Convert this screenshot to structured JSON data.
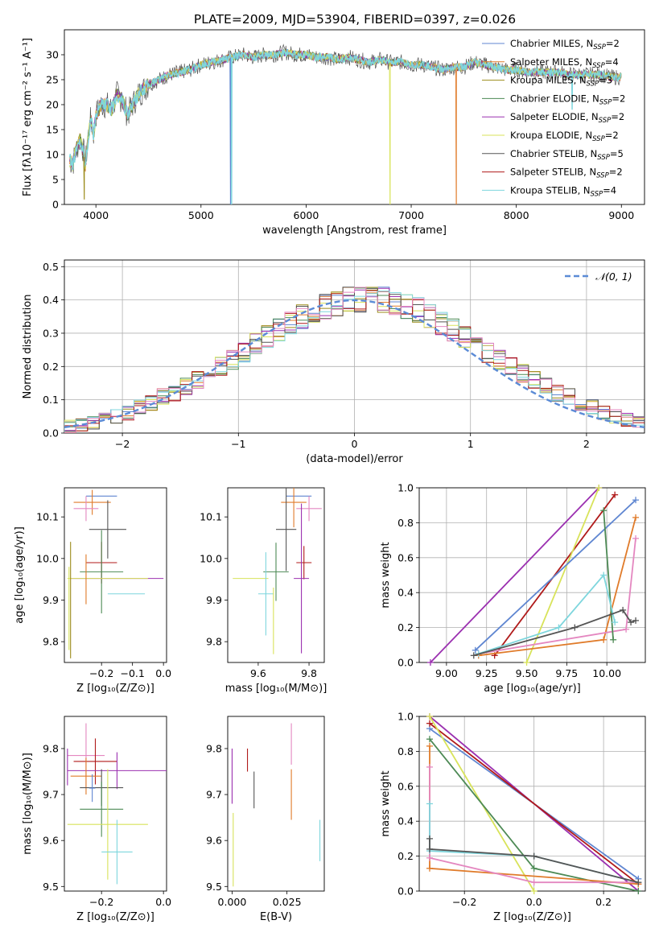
{
  "figure": {
    "title": "PLATE=2009, MJD=53904, FIBERID=0397, z=0.026"
  },
  "colors": {
    "Chabrier MILES": "#5f86d1",
    "Salpeter MILES": "#e07b2a",
    "Kroupa MILES": "#9b8b1a",
    "Chabrier ELODIE": "#4d8a55",
    "Salpeter ELODIE": "#9b30b0",
    "Kroupa ELODIE": "#d8e35a",
    "Chabrier STELIB": "#555555",
    "Salpeter STELIB": "#b01a1a",
    "Kroupa STELIB": "#7ed6dd",
    "Pink": "#e487c0",
    "Grid": "#b0b0b0",
    "Normal": "#5b8bd6"
  },
  "chart_data": [
    {
      "id": "spectrum",
      "type": "line",
      "xlabel": "wavelength [Angstrom, rest frame]",
      "ylabel": "Flux [fλ10⁻¹⁷ erg cm⁻² s⁻¹ A⁻¹]",
      "xlim": [
        3700,
        9220
      ],
      "ylim": [
        0,
        35
      ],
      "xticks": [
        4000,
        5000,
        6000,
        7000,
        8000,
        9000
      ],
      "yticks": [
        0,
        5,
        10,
        15,
        20,
        25,
        30
      ],
      "legend_position": "upper right",
      "continuum": {
        "x": [
          3750,
          3780,
          3800,
          3830,
          3850,
          3880,
          3900,
          3930,
          3950,
          3980,
          4000,
          4050,
          4100,
          4150,
          4200,
          4250,
          4300,
          4350,
          4400,
          4500,
          4600,
          4700,
          4800,
          4900,
          5000,
          5100,
          5200,
          5300,
          5400,
          5500,
          5600,
          5700,
          5800,
          5900,
          6000,
          6100,
          6200,
          6300,
          6400,
          6500,
          6600,
          6700,
          6800,
          6900,
          7000,
          7100,
          7200,
          7300,
          7400,
          7500,
          7600,
          7700,
          7800,
          7900,
          8000,
          8100,
          8200,
          8300,
          8400,
          8500,
          8600,
          8700,
          8800,
          8900,
          9000
        ],
        "y": [
          9,
          8,
          10,
          12,
          13,
          11,
          8,
          14,
          17,
          14,
          18,
          20,
          20,
          19,
          22,
          21,
          18,
          20,
          22,
          24,
          25,
          26,
          26.5,
          27,
          28,
          28.5,
          29,
          29.5,
          30,
          29.5,
          30,
          30,
          30.5,
          30,
          30,
          29.5,
          29.5,
          29,
          29.5,
          29,
          28.5,
          29,
          28.5,
          28.5,
          28,
          28,
          27.5,
          27,
          27.5,
          27.5,
          28.5,
          28,
          27.5,
          27,
          27,
          26.5,
          26.5,
          26.5,
          26.5,
          26,
          26,
          26,
          26,
          25.5,
          25.5
        ]
      },
      "series_dips": [
        {
          "name": "Kroupa MILES",
          "x": 3890,
          "y": 1
        },
        {
          "name": "Chabrier MILES",
          "x": 5280,
          "y": 0
        },
        {
          "name": "Kroupa STELIB",
          "x": 5290,
          "y": 0
        },
        {
          "name": "Kroupa ELODIE",
          "x": 6800,
          "y": 0
        },
        {
          "name": "Salpeter MILES",
          "x": 7430,
          "y": 0
        },
        {
          "name": "Kroupa STELIB",
          "x": 8530,
          "y": 19
        }
      ],
      "series": [
        {
          "key": "Chabrier MILES",
          "label": "Chabrier MILES, N",
          "sub": "SSP",
          "suffix": "=2"
        },
        {
          "key": "Salpeter MILES",
          "label": "Salpeter MILES, N",
          "sub": "SSP",
          "suffix": "=4"
        },
        {
          "key": "Kroupa MILES",
          "label": "Kroupa MILES, N",
          "sub": "SSP",
          "suffix": "=3"
        },
        {
          "key": "Chabrier ELODIE",
          "label": "Chabrier ELODIE, N",
          "sub": "SSP",
          "suffix": "=2"
        },
        {
          "key": "Salpeter ELODIE",
          "label": "Salpeter ELODIE, N",
          "sub": "SSP",
          "suffix": "=2"
        },
        {
          "key": "Kroupa ELODIE",
          "label": "Kroupa ELODIE, N",
          "sub": "SSP",
          "suffix": "=2"
        },
        {
          "key": "Chabrier STELIB",
          "label": "Chabrier STELIB, N",
          "sub": "SSP",
          "suffix": "=5"
        },
        {
          "key": "Salpeter STELIB",
          "label": "Salpeter STELIB, N",
          "sub": "SSP",
          "suffix": "=2"
        },
        {
          "key": "Kroupa STELIB",
          "label": "Kroupa STELIB, N",
          "sub": "SSP",
          "suffix": "=4"
        }
      ]
    },
    {
      "id": "residuals",
      "type": "histogram",
      "xlabel": "(data-model)/error",
      "ylabel": "Normed distribution",
      "xlim": [
        -2.5,
        2.5
      ],
      "ylim": [
        0,
        0.52
      ],
      "xticks": [
        -2,
        -1,
        0,
        1,
        2
      ],
      "yticks": [
        0.0,
        0.1,
        0.2,
        0.3,
        0.4,
        0.5
      ],
      "grid": true,
      "legend_position": "upper right",
      "legend_label": "𝒩(0, 1)",
      "bin_width": 0.1,
      "bin_start": -2.5,
      "reference": [
        0.02,
        0.025,
        0.03,
        0.04,
        0.05,
        0.06,
        0.08,
        0.09,
        0.11,
        0.12,
        0.14,
        0.16,
        0.18,
        0.2,
        0.22,
        0.24,
        0.27,
        0.29,
        0.31,
        0.33,
        0.35,
        0.37,
        0.38,
        0.39,
        0.4,
        0.4,
        0.4,
        0.4,
        0.39,
        0.38,
        0.37,
        0.35,
        0.33,
        0.31,
        0.29,
        0.27,
        0.24,
        0.22,
        0.2,
        0.18,
        0.16,
        0.14,
        0.12,
        0.11,
        0.09,
        0.08,
        0.06,
        0.05,
        0.04,
        0.03
      ],
      "series": [
        {
          "key": "Chabrier MILES",
          "offset": 1
        },
        {
          "key": "Salpeter MILES",
          "offset": 2
        },
        {
          "key": "Kroupa MILES",
          "offset": 3
        },
        {
          "key": "Chabrier ELODIE",
          "offset": 4
        },
        {
          "key": "Salpeter ELODIE",
          "offset": 5
        },
        {
          "key": "Kroupa ELODIE",
          "offset": 6
        },
        {
          "key": "Chabrier STELIB",
          "offset": 7
        },
        {
          "key": "Salpeter STELIB",
          "offset": 8
        },
        {
          "key": "Kroupa STELIB",
          "offset": 9
        },
        {
          "key": "Pink",
          "offset": 10
        }
      ],
      "normal_curve": {
        "mean": 0,
        "sigma": 1
      }
    },
    {
      "id": "age_vs_z",
      "type": "errorbar",
      "xlabel": "Z [log₁₀(Z/Z⊙)]",
      "ylabel": "age  [log₁₀(age/yr)]",
      "xlim": [
        -0.32,
        0.01
      ],
      "ylim": [
        9.75,
        10.17
      ],
      "xticks": [
        -0.2,
        -0.1,
        0.0
      ],
      "xticklabels": [
        "−0.2",
        "−0.1",
        "0.0"
      ],
      "yticks": [
        9.8,
        9.9,
        10.0,
        10.1
      ],
      "points": [
        {
          "key": "Chabrier MILES",
          "x": -0.2,
          "y": 10.15,
          "xerr": 0.05,
          "yerr": 0.0
        },
        {
          "key": "Salpeter MILES",
          "x": -0.23,
          "y": 10.135,
          "xerr": 0.06,
          "yerr": 0.03
        },
        {
          "key": "Pink",
          "x": -0.25,
          "y": 10.12,
          "xerr": 0.04,
          "yerr": 0.03
        },
        {
          "key": "Chabrier STELIB",
          "x": -0.18,
          "y": 10.07,
          "xerr": 0.06,
          "yerr": 0.07
        },
        {
          "key": "Salpeter STELIB",
          "x": -0.2,
          "y": 9.99,
          "xerr": 0.05,
          "yerr": 0.05
        },
        {
          "key": "Chabrier ELODIE",
          "x": -0.2,
          "y": 9.968,
          "xerr": 0.07,
          "yerr": 0.1
        },
        {
          "key": "Salpeter ELODIE",
          "x": -0.15,
          "y": 9.952,
          "xerr": 0.15,
          "yerr": 0.0
        },
        {
          "key": "Kroupa ELODIE",
          "x": -0.18,
          "y": 9.952,
          "xerr": 0.13,
          "yerr": 0.0
        },
        {
          "key": "Kroupa STELIB",
          "x": -0.12,
          "y": 9.915,
          "xerr": 0.06,
          "yerr": 0.0
        },
        {
          "key": "Salpeter MILES",
          "x": -0.25,
          "y": 9.95,
          "xerr": 0.0,
          "yerr": 0.06
        },
        {
          "key": "Kroupa MILES",
          "x": -0.3,
          "y": 9.9,
          "xerr": 0.0,
          "yerr": 0.14
        },
        {
          "key": "Kroupa ELODIE",
          "x": -0.305,
          "y": 9.88,
          "xerr": 0.0,
          "yerr": 0.1
        }
      ]
    },
    {
      "id": "age_vs_mass",
      "type": "errorbar",
      "xlabel": "mass [log₁₀(M/M⊙)]",
      "ylabel": "",
      "xlim": [
        9.48,
        9.86
      ],
      "ylim": [
        9.75,
        10.17
      ],
      "xticks": [
        9.6,
        9.8
      ],
      "yticks": [
        9.8,
        9.9,
        10.0,
        10.1
      ],
      "points": [
        {
          "key": "Chabrier MILES",
          "x": 9.76,
          "y": 10.15,
          "xerr": 0.05,
          "yerr": 0.0
        },
        {
          "key": "Salpeter MILES",
          "x": 9.74,
          "y": 10.135,
          "xerr": 0.05,
          "yerr": 0.06
        },
        {
          "key": "Pink",
          "x": 9.8,
          "y": 10.12,
          "xerr": 0.05,
          "yerr": 0.03
        },
        {
          "key": "Chabrier STELIB",
          "x": 9.71,
          "y": 10.07,
          "xerr": 0.04,
          "yerr": 0.1
        },
        {
          "key": "Salpeter STELIB",
          "x": 9.78,
          "y": 9.99,
          "xerr": 0.03,
          "yerr": 0.04
        },
        {
          "key": "Chabrier ELODIE",
          "x": 9.67,
          "y": 9.968,
          "xerr": 0.05,
          "yerr": 0.07
        },
        {
          "key": "Salpeter ELODIE",
          "x": 9.77,
          "y": 9.952,
          "xerr": 0.03,
          "yerr": 0.18
        },
        {
          "key": "Kroupa ELODIE",
          "x": 9.57,
          "y": 9.952,
          "xerr": 0.07,
          "yerr": 0.0
        },
        {
          "key": "Kroupa STELIB",
          "x": 9.63,
          "y": 9.915,
          "xerr": 0.03,
          "yerr": 0.1
        },
        {
          "key": "Kroupa ELODIE",
          "x": 9.66,
          "y": 9.85,
          "xerr": 0.0,
          "yerr": 0.08
        }
      ]
    },
    {
      "id": "weight_vs_age",
      "type": "line",
      "xlabel": "age  [log₁₀(age/yr)]",
      "ylabel": "mass weight",
      "xlim": [
        8.83,
        10.24
      ],
      "ylim": [
        0,
        1
      ],
      "xticks": [
        9.0,
        9.25,
        9.5,
        9.75,
        10.0
      ],
      "xticklabels": [
        "9.00",
        "9.25",
        "9.50",
        "9.75",
        "10.00"
      ],
      "yticks": [
        0.0,
        0.2,
        0.4,
        0.6,
        0.8,
        1.0
      ],
      "grid": true,
      "series": [
        {
          "key": "Salpeter ELODIE",
          "x": [
            8.9,
            9.95
          ],
          "y": [
            0.0,
            1.0
          ]
        },
        {
          "key": "Salpeter STELIB",
          "x": [
            9.3,
            10.05
          ],
          "y": [
            0.04,
            0.96
          ]
        },
        {
          "key": "Kroupa ELODIE",
          "x": [
            9.5,
            9.95
          ],
          "y": [
            0.0,
            1.0
          ]
        },
        {
          "key": "Chabrier MILES",
          "x": [
            9.18,
            10.18
          ],
          "y": [
            0.07,
            0.93
          ]
        },
        {
          "key": "Salpeter MILES",
          "x": [
            9.2,
            9.98,
            10.18
          ],
          "y": [
            0.04,
            0.13,
            0.83
          ]
        },
        {
          "key": "Pink",
          "x": [
            9.2,
            10.12,
            10.18
          ],
          "y": [
            0.05,
            0.19,
            0.71
          ]
        },
        {
          "key": "Chabrier ELODIE",
          "x": [
            9.98,
            10.04
          ],
          "y": [
            0.87,
            0.13
          ]
        },
        {
          "key": "Kroupa STELIB",
          "x": [
            9.2,
            9.7,
            9.98,
            10.05
          ],
          "y": [
            0.05,
            0.2,
            0.5,
            0.23
          ]
        },
        {
          "key": "Chabrier STELIB",
          "x": [
            9.17,
            9.8,
            10.1,
            10.15,
            10.18
          ],
          "y": [
            0.04,
            0.2,
            0.3,
            0.23,
            0.24
          ]
        }
      ]
    },
    {
      "id": "mass_vs_z",
      "type": "errorbar",
      "xlabel": "Z [log₁₀(Z/Z⊙)]",
      "ylabel": "mass [log₁₀(M/M⊙)]",
      "xlim": [
        -0.32,
        0.01
      ],
      "ylim": [
        9.49,
        9.87
      ],
      "xticks": [
        -0.2,
        0.0
      ],
      "xticklabels": [
        "−0.2",
        "0.0"
      ],
      "yticks": [
        9.5,
        9.6,
        9.7,
        9.8
      ],
      "points": [
        {
          "key": "Pink",
          "x": -0.25,
          "y": 9.785,
          "xerr": 0.06,
          "yerr": 0.07
        },
        {
          "key": "Salpeter STELIB",
          "x": -0.22,
          "y": 9.772,
          "xerr": 0.07,
          "yerr": 0.05
        },
        {
          "key": "Salpeter ELODIE",
          "x": -0.15,
          "y": 9.752,
          "xerr": 0.16,
          "yerr": 0.04
        },
        {
          "key": "Salpeter MILES",
          "x": -0.25,
          "y": 9.74,
          "xerr": 0.05,
          "yerr": 0.04
        },
        {
          "key": "Chabrier STELIB",
          "x": -0.2,
          "y": 9.715,
          "xerr": 0.07,
          "yerr": 0.04
        },
        {
          "key": "Chabrier MILES",
          "x": -0.23,
          "y": 9.714,
          "xerr": 0.01,
          "yerr": 0.03
        },
        {
          "key": "Chabrier ELODIE",
          "x": -0.2,
          "y": 9.668,
          "xerr": 0.07,
          "yerr": 0.06
        },
        {
          "key": "Kroupa ELODIE",
          "x": -0.18,
          "y": 9.635,
          "xerr": 0.13,
          "yerr": 0.12
        },
        {
          "key": "Kroupa STELIB",
          "x": -0.15,
          "y": 9.575,
          "xerr": 0.05,
          "yerr": 0.07
        },
        {
          "key": "Salpeter ELODIE",
          "x": -0.31,
          "y": 9.76,
          "xerr": 0.0,
          "yerr": 0.04
        }
      ]
    },
    {
      "id": "mass_vs_ebv",
      "type": "errorbar",
      "xlabel": "E(B-V)",
      "ylabel": "",
      "xlim": [
        -0.002,
        0.042
      ],
      "ylim": [
        9.49,
        9.87
      ],
      "xticks": [
        0.0,
        0.025
      ],
      "xticklabels": [
        "0.000",
        "0.025"
      ],
      "yticks": [
        9.5,
        9.6,
        9.7,
        9.8
      ],
      "points": [
        {
          "key": "Salpeter ELODIE",
          "x": 0.0,
          "y": 9.74,
          "xerr": 0.0,
          "yerr": 0.06
        },
        {
          "key": "Kroupa ELODIE",
          "x": 0.0005,
          "y": 9.58,
          "xerr": 0.0,
          "yerr": 0.08
        },
        {
          "key": "Salpeter STELIB",
          "x": 0.007,
          "y": 9.775,
          "xerr": 0.0,
          "yerr": 0.025
        },
        {
          "key": "Chabrier STELIB",
          "x": 0.01,
          "y": 9.71,
          "xerr": 0.0,
          "yerr": 0.04
        },
        {
          "key": "Pink",
          "x": 0.027,
          "y": 9.81,
          "xerr": 0.0,
          "yerr": 0.045
        },
        {
          "key": "Salpeter MILES",
          "x": 0.027,
          "y": 9.7,
          "xerr": 0.0,
          "yerr": 0.055
        },
        {
          "key": "Kroupa STELIB",
          "x": 0.04,
          "y": 9.6,
          "xerr": 0.0,
          "yerr": 0.045
        }
      ]
    },
    {
      "id": "weight_vs_z",
      "type": "line",
      "xlabel": "Z [log₁₀(Z/Z⊙)]",
      "ylabel": "mass weight",
      "xlim": [
        -0.33,
        0.32
      ],
      "ylim": [
        0,
        1
      ],
      "xticks": [
        -0.2,
        0.0,
        0.2
      ],
      "xticklabels": [
        "−0.2",
        "0.0",
        "0.2"
      ],
      "yticks": [
        0.0,
        0.2,
        0.4,
        0.6,
        0.8,
        1.0
      ],
      "grid": true,
      "series": [
        {
          "key": "Chabrier MILES",
          "x": [
            -0.3,
            0.3
          ],
          "y": [
            0.93,
            0.07
          ]
        },
        {
          "key": "Salpeter ELODIE",
          "x": [
            -0.3,
            0.3
          ],
          "y": [
            1.0,
            0.0
          ]
        },
        {
          "key": "Salpeter STELIB",
          "x": [
            -0.3,
            0.3
          ],
          "y": [
            0.96,
            0.04
          ]
        },
        {
          "key": "Kroupa ELODIE",
          "x": [
            -0.3,
            0.0
          ],
          "y": [
            1.0,
            0.0
          ]
        },
        {
          "key": "Chabrier ELODIE",
          "x": [
            -0.3,
            0.0,
            0.3
          ],
          "y": [
            0.87,
            0.13,
            0.0
          ]
        },
        {
          "key": "Salpeter MILES",
          "x": [
            -0.3,
            -0.3,
            0.3
          ],
          "y": [
            0.83,
            0.13,
            0.04
          ]
        },
        {
          "key": "Pink",
          "x": [
            -0.3,
            -0.3,
            0.0,
            0.3
          ],
          "y": [
            0.71,
            0.19,
            0.05,
            0.05
          ]
        },
        {
          "key": "Kroupa STELIB",
          "x": [
            -0.3,
            -0.3,
            0.0,
            0.3
          ],
          "y": [
            0.5,
            0.23,
            0.2,
            0.05
          ]
        },
        {
          "key": "Chabrier STELIB",
          "x": [
            -0.3,
            -0.3,
            0.0,
            0.3
          ],
          "y": [
            0.3,
            0.24,
            0.2,
            0.05
          ]
        }
      ]
    }
  ]
}
